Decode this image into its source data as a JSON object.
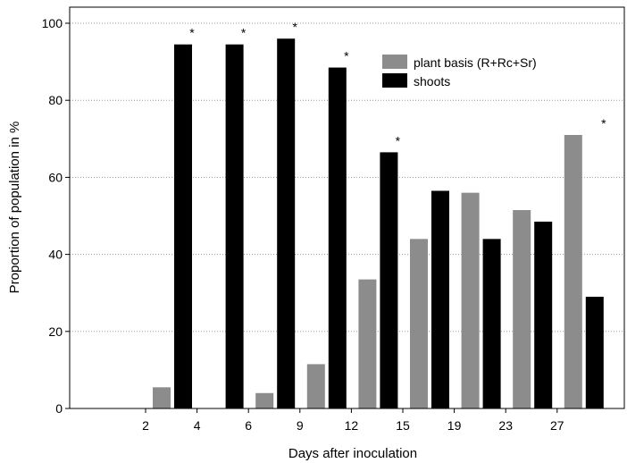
{
  "chart_data": {
    "type": "bar",
    "title": "",
    "xlabel": "Days after inoculation",
    "ylabel": "Proportion of  population in %",
    "categories": [
      "2",
      "4",
      "6",
      "9",
      "12",
      "15",
      "19",
      "23",
      "27"
    ],
    "series": [
      {
        "name": "plant basis (R+Rc+Sr)",
        "color": "#8c8c8c",
        "values": [
          5.5,
          0,
          4,
          11.5,
          33.5,
          44,
          56,
          51.5,
          71
        ]
      },
      {
        "name": "shoots",
        "color": "#000000",
        "values": [
          94.5,
          94.5,
          96,
          88.5,
          66.5,
          56.5,
          44,
          48.5,
          29
        ]
      }
    ],
    "significance_marker": "*",
    "significant_categories": [
      "2",
      "4",
      "6",
      "9",
      "12",
      "27"
    ],
    "ylim": [
      0,
      100
    ],
    "yticks": [
      0,
      20,
      40,
      60,
      80,
      100
    ],
    "grid": "horizontal dotted",
    "legend_position": "top-right"
  }
}
